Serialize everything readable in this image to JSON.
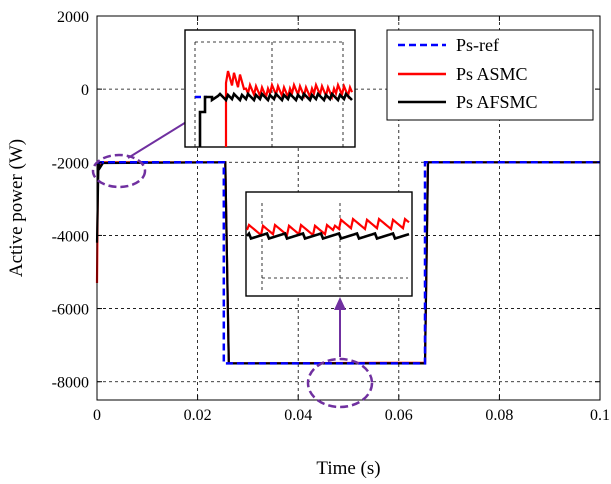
{
  "colors": {
    "ref": "#0000ff",
    "asmc": "#ff0000",
    "afsmc": "#000000",
    "annotation": "#7030a0",
    "grid": "#000000"
  },
  "chart_data": {
    "type": "line",
    "xlabel": "Time (s)",
    "ylabel": "Active power (W)",
    "xlim": [
      0,
      0.1
    ],
    "ylim": [
      -8500,
      2000
    ],
    "xticks": [
      0,
      0.02,
      0.04,
      0.06,
      0.08,
      0.1
    ],
    "xtick_labels": [
      "0",
      "0.02",
      "0.04",
      "0.06",
      "0.08",
      "0.1"
    ],
    "yticks": [
      2000,
      0,
      -2000,
      -4000,
      -6000,
      -8000
    ],
    "ytick_labels": [
      "2000",
      "0",
      "-2000",
      "-4000",
      "-6000",
      "-8000"
    ],
    "grid": true,
    "legend_position": "top-right",
    "series": [
      {
        "name": "Ps-ref",
        "style": "dashed",
        "x": [
          0,
          0.0252,
          0.0252,
          0.0652,
          0.0652,
          0.1
        ],
        "y": [
          -2000,
          -2000,
          -7500,
          -7500,
          -2000,
          -2000
        ]
      },
      {
        "name": "Ps ASMC",
        "style": "solid",
        "x": [
          0,
          0.0002,
          0.0005,
          0.0012,
          0.0255,
          0.0262,
          0.0652,
          0.0658,
          0.1
        ],
        "y": [
          -5300,
          -2000,
          -2100,
          -2000,
          -2000,
          -7500,
          -7480,
          -2000,
          -2000
        ]
      },
      {
        "name": "Ps AFSMC",
        "style": "solid",
        "x": [
          0,
          0.0003,
          0.0006,
          0.0012,
          0.0255,
          0.0262,
          0.0652,
          0.0658,
          0.1
        ],
        "y": [
          -4200,
          -2000,
          -2150,
          -2020,
          -2000,
          -7500,
          -7500,
          -2000,
          -2000
        ]
      }
    ]
  }
}
